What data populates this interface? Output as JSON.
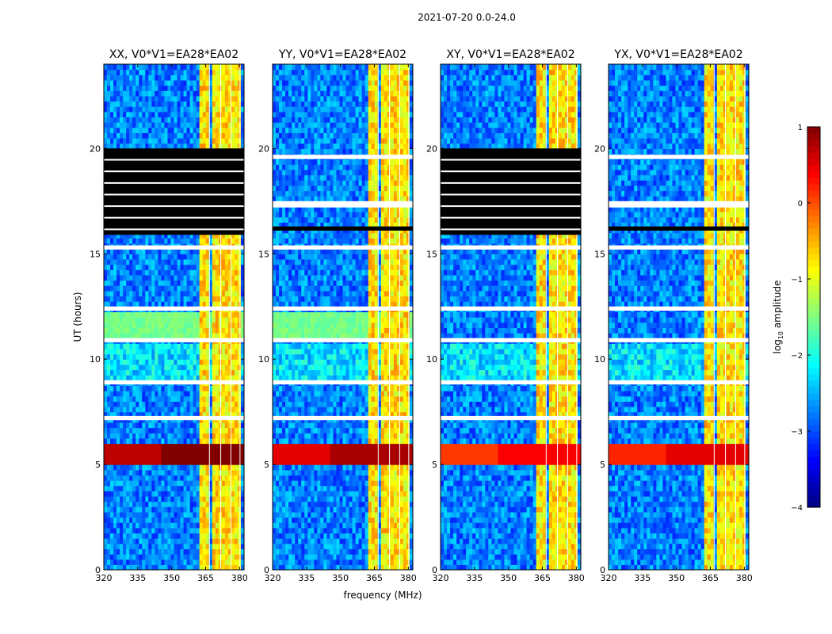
{
  "figure": {
    "suptitle": "2021-07-20 0.0-24.0",
    "xlabel": "frequency (MHz)",
    "ylabel": "UT (hours)"
  },
  "chart_data": {
    "type": "heatmap",
    "title": "2021-07-20 0.0-24.0",
    "xlabel": "frequency (MHz)",
    "ylabel": "UT (hours)",
    "xlim": [
      320,
      382
    ],
    "ylim": [
      0,
      24
    ],
    "xticks": [
      320,
      335,
      350,
      365,
      380
    ],
    "yticks": [
      0,
      5,
      10,
      15,
      20
    ],
    "panels": [
      {
        "name": "XX, V0*V1=EA28*EA02",
        "corr": "XX",
        "flag_black": [
          [
            15.9,
            20.0
          ]
        ],
        "flag_white": [
          [
            7.1,
            7.3
          ],
          [
            8.8,
            9.0
          ],
          [
            10.8,
            11.0
          ],
          [
            12.3,
            12.5
          ],
          [
            15.2,
            15.4
          ]
        ],
        "flare_level": 1.0
      },
      {
        "name": "YY, V0*V1=EA28*EA02",
        "corr": "YY",
        "flag_black": [
          [
            16.1,
            16.3
          ]
        ],
        "flag_white": [
          [
            7.1,
            7.3
          ],
          [
            8.8,
            9.0
          ],
          [
            10.8,
            11.0
          ],
          [
            12.3,
            12.5
          ],
          [
            15.2,
            15.4
          ],
          [
            17.2,
            17.5
          ],
          [
            19.5,
            19.7
          ]
        ],
        "flare_level": 0.8
      },
      {
        "name": "XY, V0*V1=EA28*EA02",
        "corr": "XY",
        "flag_black": [
          [
            15.9,
            20.0
          ]
        ],
        "flag_white": [
          [
            7.1,
            7.3
          ],
          [
            8.8,
            9.0
          ],
          [
            10.8,
            11.0
          ],
          [
            12.3,
            12.5
          ],
          [
            15.2,
            15.4
          ]
        ],
        "flare_level": 0.4
      },
      {
        "name": "YX, V0*V1=EA28*EA02",
        "corr": "YX",
        "flag_black": [
          [
            16.1,
            16.3
          ]
        ],
        "flag_white": [
          [
            7.1,
            7.3
          ],
          [
            8.8,
            9.0
          ],
          [
            10.8,
            11.0
          ],
          [
            12.3,
            12.5
          ],
          [
            15.2,
            15.4
          ],
          [
            17.2,
            17.5
          ],
          [
            19.5,
            19.7
          ]
        ],
        "flare_level": 0.5
      }
    ],
    "rfi_bands_mhz": [
      [
        362,
        366.5
      ],
      [
        367.5,
        371.5
      ],
      [
        372.5,
        376
      ],
      [
        377,
        380
      ]
    ],
    "flare_hours": [
      5.0,
      6.0
    ],
    "colorbar": {
      "label": "log10 amplitude",
      "label_main": "log",
      "label_sub": "10",
      "label_rest": " amplitude",
      "min": -4,
      "max": 1,
      "ticks": [
        -4,
        -3,
        -2,
        -1,
        0,
        1
      ],
      "tick_labels": [
        "−4",
        "−3",
        "−2",
        "−1",
        "0",
        "1"
      ],
      "colormap": "jet"
    }
  }
}
